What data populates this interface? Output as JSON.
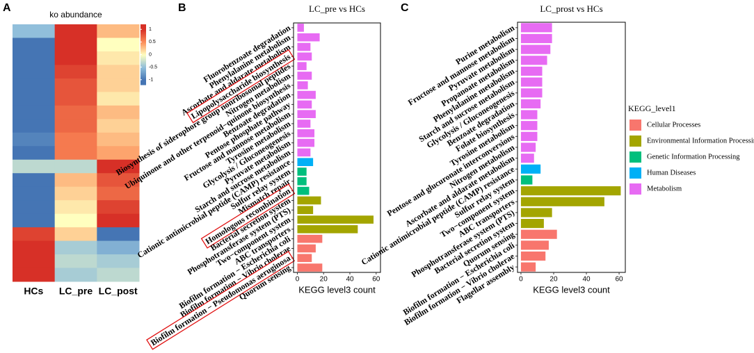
{
  "chart_data": [
    {
      "type": "heatmap",
      "panel": "A",
      "title": "ko abundance",
      "columns": [
        "HCs",
        "LC_pre",
        "LC_post"
      ],
      "values": [
        [
          -0.5,
          1.0,
          0.3
        ],
        [
          -1.0,
          1.0,
          0.0
        ],
        [
          -1.0,
          1.1,
          0.1
        ],
        [
          -1.0,
          0.9,
          0.2
        ],
        [
          -1.0,
          0.8,
          0.2
        ],
        [
          -1.0,
          0.8,
          0.1
        ],
        [
          -1.0,
          0.7,
          0.3
        ],
        [
          -1.0,
          0.7,
          0.2
        ],
        [
          -0.9,
          0.6,
          0.3
        ],
        [
          -1.0,
          0.6,
          0.4
        ],
        [
          -0.3,
          -0.3,
          1.2
        ],
        [
          -1.0,
          0.3,
          0.8
        ],
        [
          -1.0,
          0.2,
          0.7
        ],
        [
          -1.0,
          0.1,
          0.9
        ],
        [
          -1.0,
          0.0,
          1.0
        ],
        [
          0.9,
          0.2,
          -1.0
        ],
        [
          1.0,
          -0.4,
          -0.6
        ],
        [
          1.1,
          -0.3,
          -0.4
        ],
        [
          1.1,
          -0.4,
          -0.3
        ]
      ],
      "zlim": [
        -1.2,
        1.2
      ],
      "zticks": [
        1,
        0.5,
        0,
        -0.5,
        -1
      ]
    },
    {
      "type": "bar",
      "orientation": "horizontal",
      "panel": "B",
      "title": "LC_pre vs HCs",
      "xlabel": "KEGG level3 count",
      "categories": [
        "Fluorobenzoate degradation",
        "Phenylalanine metabolism",
        "Ascorbate and aldarate metabolism",
        "Lipopolysaccharide biosynthesis",
        "Biosynthesis of siderophore group nonribosomal peptides",
        "Nitrogen metabolism",
        "Ubiquinone and other terpenoid−quinone biosynthesis",
        "Benzoate degradation",
        "Pentose phosphate pathway",
        "Fructose and mannose metabolism",
        "Tyrosine metabolism",
        "Glycolysis / Gluconeogenesis",
        "Pyruvate metabolism",
        "Starch and sucrose metabolism",
        "Cationic antimicrobial peptide (CAMP) resistance",
        "Sulfur relay system",
        "Mismatch repair",
        "Homologous recombination",
        "Bacterial secretion system",
        "Phosphotransferase system (PTS)",
        "Two−component system",
        "ABC transporters",
        "Biofilm formation − Escherichia coli",
        "Biofilm formation − Vibrio cholerae",
        "Biofilm formation − Pseudomonas aeruginosa",
        "Quorum sensing"
      ],
      "values": [
        5,
        17,
        10,
        11,
        7,
        11,
        8,
        14,
        11,
        14,
        10,
        13,
        13,
        10,
        12,
        7,
        7,
        9,
        18,
        12,
        58,
        46,
        19,
        14,
        11,
        19
      ],
      "groups": [
        "Metabolism",
        "Metabolism",
        "Metabolism",
        "Metabolism",
        "Metabolism",
        "Metabolism",
        "Metabolism",
        "Metabolism",
        "Metabolism",
        "Metabolism",
        "Metabolism",
        "Metabolism",
        "Metabolism",
        "Metabolism",
        "Human Diseases",
        "Genetic Information Processing",
        "Genetic Information Processing",
        "Genetic Information Processing",
        "Environmental Information Processing",
        "Environmental Information Processing",
        "Environmental Information Processing",
        "Environmental Information Processing",
        "Cellular Processes",
        "Cellular Processes",
        "Cellular Processes",
        "Cellular Processes"
      ],
      "highlight": [
        3,
        17,
        24
      ],
      "xlim": [
        -2.9,
        63.3
      ],
      "xticks": [
        0,
        20,
        40,
        60
      ]
    },
    {
      "type": "bar",
      "orientation": "horizontal",
      "panel": "C",
      "title": "LC_prost vs HCs",
      "xlabel": "KEGG level3 count",
      "categories": [
        "Purine metabolism",
        "Fructose and mannose metabolism",
        "Pyruvate metabolism",
        "Propanoate metabolism",
        "Phenylalanine metabolism",
        "Starch and sucrose metabolism",
        "Glycolysis / Gluconeogenesis",
        "Benzoate degradation",
        "Folate biosynthesis",
        "Tyrosine metabolism",
        "Pentose and glucuronate interconversions",
        "Nitrogen metabolism",
        "Ascorbate and aldarate metabolism",
        "Cationic antimicrobial peptide (CAMP) resistance",
        "Sulfur relay system",
        "Two−component system",
        "ABC transporters",
        "Phosphotransferase system (PTS)",
        "Bacterial secretion system",
        "Quorum sensing",
        "Biofilm formation − Escherichia coli",
        "Biofilm formation − Vibrio cholerae",
        "Flagellar assembly"
      ],
      "values": [
        19,
        19,
        18,
        16,
        13,
        13,
        13,
        12,
        10,
        10,
        10,
        9,
        8,
        12,
        7,
        61,
        51,
        19,
        14,
        22,
        17,
        15,
        9
      ],
      "groups": [
        "Metabolism",
        "Metabolism",
        "Metabolism",
        "Metabolism",
        "Metabolism",
        "Metabolism",
        "Metabolism",
        "Metabolism",
        "Metabolism",
        "Metabolism",
        "Metabolism",
        "Metabolism",
        "Metabolism",
        "Human Diseases",
        "Genetic Information Processing",
        "Environmental Information Processing",
        "Environmental Information Processing",
        "Environmental Information Processing",
        "Environmental Information Processing",
        "Cellular Processes",
        "Cellular Processes",
        "Cellular Processes",
        "Cellular Processes"
      ],
      "xlim": [
        -2.1,
        63.8
      ],
      "xticks": [
        0,
        20,
        40,
        60
      ]
    }
  ],
  "legend": {
    "title": "KEGG_level1",
    "items": [
      {
        "name": "Cellular Processes",
        "color": "#f8766d"
      },
      {
        "name": "Environmental Information Processing",
        "color": "#a3a500"
      },
      {
        "name": "Genetic Information Processing",
        "color": "#00bf7d"
      },
      {
        "name": "Human Diseases",
        "color": "#00b0f6"
      },
      {
        "name": "Metabolism",
        "color": "#e76bf3"
      }
    ]
  }
}
